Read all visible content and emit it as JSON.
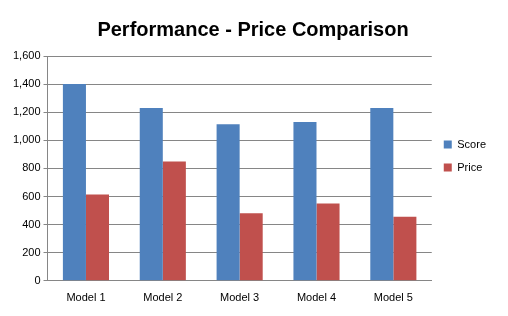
{
  "chart_data": {
    "type": "bar",
    "title": "Performance - Price Comparison",
    "categories": [
      "Model 1",
      "Model 2",
      "Model 3",
      "Model 4",
      "Model 5"
    ],
    "series": [
      {
        "name": "Score",
        "color": "#4f81bd",
        "values": [
          1400,
          1230,
          1115,
          1130,
          1230
        ]
      },
      {
        "name": "Price",
        "color": "#c0504d",
        "values": [
          615,
          850,
          480,
          550,
          455
        ]
      }
    ],
    "ylim": [
      0,
      1600
    ],
    "yticks": [
      0,
      200,
      400,
      600,
      800,
      {
        "value": 1000,
        "label": "1,000"
      },
      {
        "value": 1200,
        "label": "1,200"
      },
      {
        "value": 1400,
        "label": "1,400"
      },
      {
        "value": 1600,
        "label": "1,600"
      }
    ],
    "grid": true,
    "legend": "right"
  }
}
